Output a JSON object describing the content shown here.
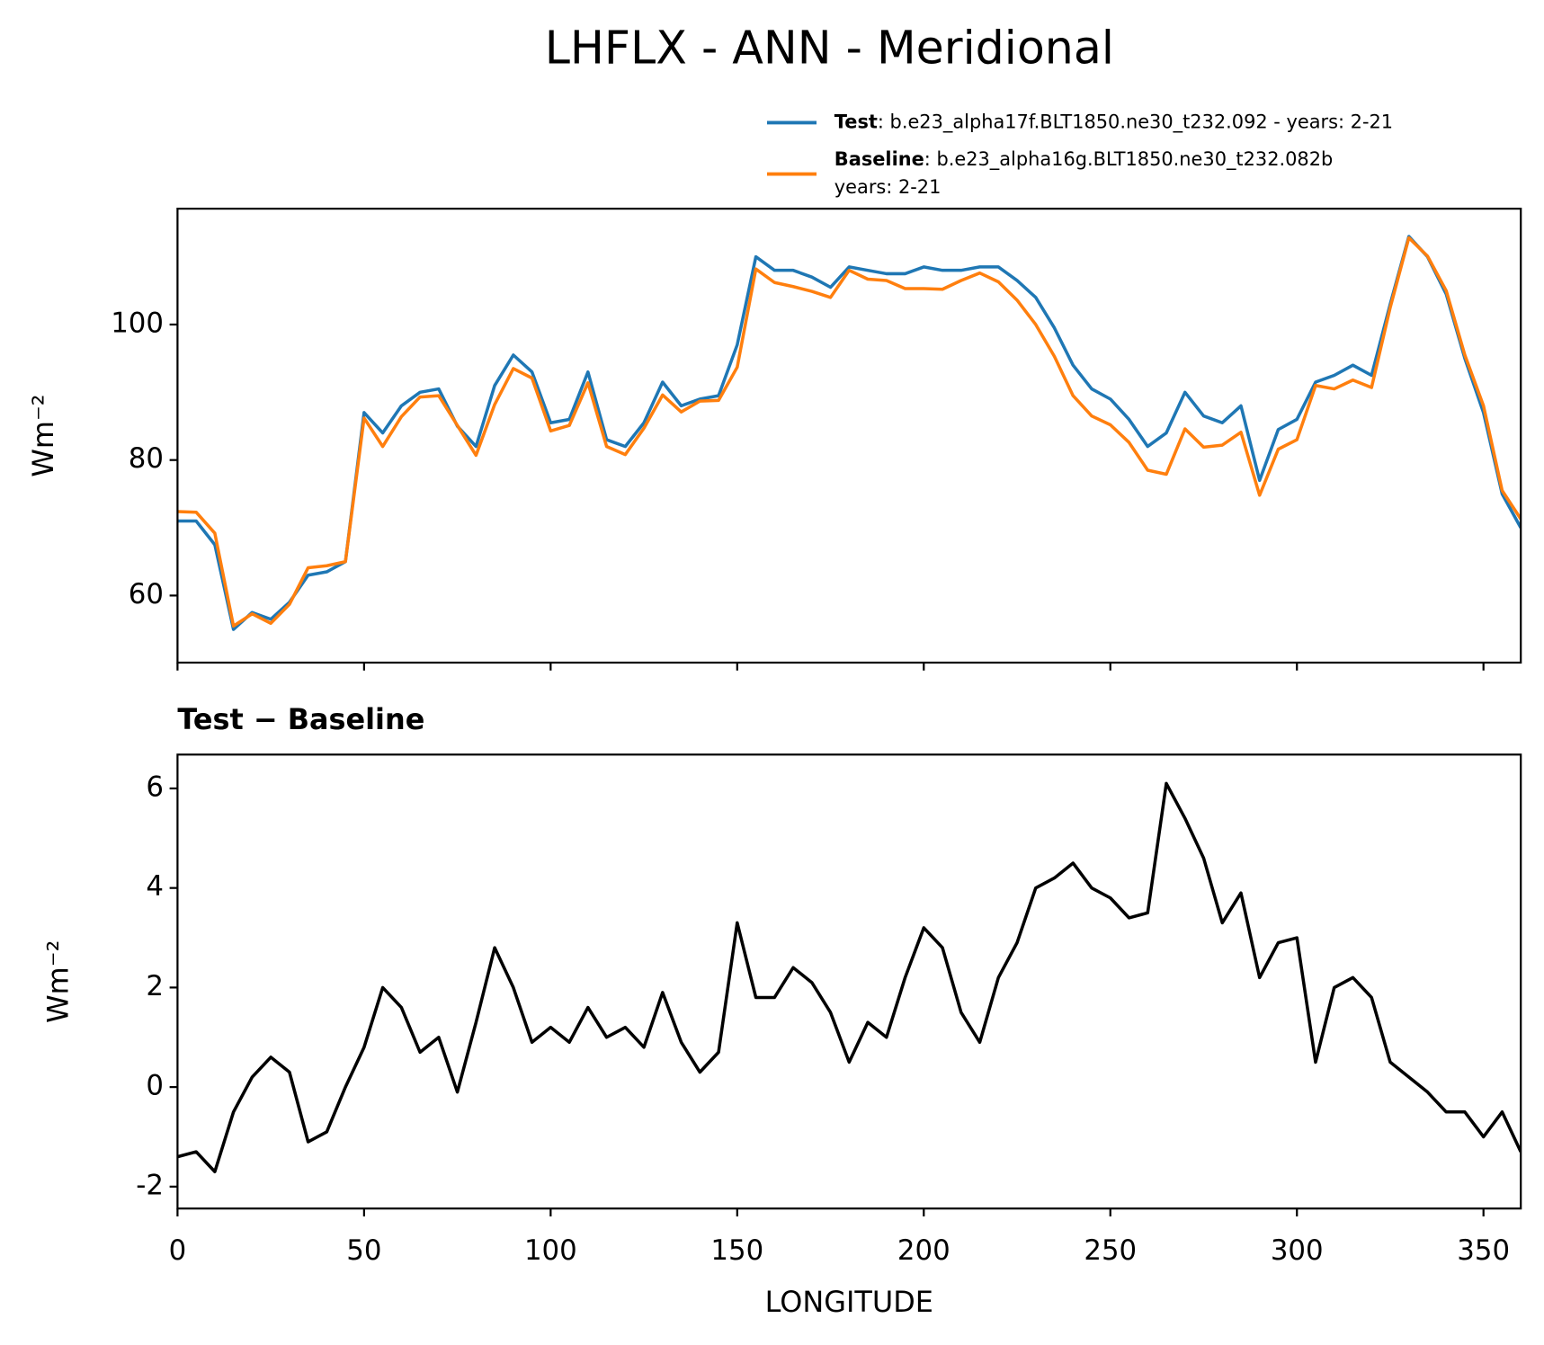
{
  "title": "LHFLX - ANN - Meridional",
  "chart_data": [
    {
      "type": "line",
      "x": [
        0,
        5,
        10,
        15,
        20,
        25,
        30,
        35,
        40,
        45,
        50,
        55,
        60,
        65,
        70,
        75,
        80,
        85,
        90,
        95,
        100,
        105,
        110,
        115,
        120,
        125,
        130,
        135,
        140,
        145,
        150,
        155,
        160,
        165,
        170,
        175,
        180,
        185,
        190,
        195,
        200,
        205,
        210,
        215,
        220,
        225,
        230,
        235,
        240,
        245,
        250,
        255,
        260,
        265,
        270,
        275,
        280,
        285,
        290,
        295,
        300,
        305,
        310,
        315,
        320,
        325,
        330,
        335,
        340,
        345,
        350,
        355,
        360
      ],
      "series": [
        {
          "name": "Test",
          "label": ": b.e23_alpha17f.BLT1850.ne30_t232.092 - years: 2-21",
          "color": "#1f77b4",
          "values": [
            71,
            71,
            67.5,
            55,
            57.5,
            56.5,
            59,
            63,
            63.5,
            65,
            87,
            84,
            88,
            90,
            90.5,
            85,
            82,
            91,
            95.5,
            93,
            85.5,
            86,
            93,
            83,
            82,
            85.5,
            91.5,
            88,
            89,
            89.5,
            97,
            110,
            108,
            108,
            107,
            105.5,
            108.5,
            108,
            107.5,
            107.5,
            108.5,
            108,
            108,
            108.5,
            108.5,
            106.5,
            104,
            99.5,
            94,
            90.5,
            89,
            86,
            82,
            84,
            90,
            86.5,
            85.5,
            88,
            77,
            84.5,
            86,
            91.5,
            92.5,
            94,
            92.5,
            103,
            113,
            110,
            104.5,
            95,
            87,
            75,
            70
          ]
        },
        {
          "name": "Baseline",
          "label": [
            ": b.e23_alpha16g.BLT1850.ne30_t232.082b",
            "years: 2-21"
          ],
          "color": "#ff7f0e",
          "values": [
            72.4,
            72.3,
            69.2,
            55.5,
            57.3,
            55.9,
            58.7,
            64.1,
            64.4,
            65,
            86.2,
            82,
            86.4,
            89.3,
            89.5,
            85.1,
            80.7,
            88.2,
            93.5,
            92.1,
            84.3,
            85.1,
            91.4,
            82,
            80.8,
            84.7,
            89.6,
            87.1,
            88.7,
            88.8,
            93.7,
            108.2,
            106.2,
            105.6,
            104.9,
            104,
            108,
            106.7,
            106.5,
            105.3,
            105.3,
            105.2,
            106.5,
            107.6,
            106.3,
            103.6,
            100,
            95.3,
            89.5,
            86.5,
            85.2,
            82.6,
            78.5,
            77.9,
            84.6,
            81.9,
            82.2,
            84.1,
            74.8,
            81.6,
            83,
            91,
            90.5,
            91.8,
            90.7,
            102.5,
            112.8,
            110.1,
            105,
            95.5,
            88,
            75.5,
            71.3
          ]
        }
      ],
      "ylabel": "Wm⁻²",
      "xlim": [
        0,
        360
      ],
      "xticks": [
        0,
        50,
        100,
        150,
        200,
        250,
        300,
        350
      ],
      "show_xtick_labels": false,
      "ylim": [
        50.1,
        117.1
      ],
      "yticks": [
        60,
        80,
        100
      ],
      "grid": false
    },
    {
      "type": "line",
      "title": "Test − Baseline",
      "x": [
        0,
        5,
        10,
        15,
        20,
        25,
        30,
        35,
        40,
        45,
        50,
        55,
        60,
        65,
        70,
        75,
        80,
        85,
        90,
        95,
        100,
        105,
        110,
        115,
        120,
        125,
        130,
        135,
        140,
        145,
        150,
        155,
        160,
        165,
        170,
        175,
        180,
        185,
        190,
        195,
        200,
        205,
        210,
        215,
        220,
        225,
        230,
        235,
        240,
        245,
        250,
        255,
        260,
        265,
        270,
        275,
        280,
        285,
        290,
        295,
        300,
        305,
        310,
        315,
        320,
        325,
        330,
        335,
        340,
        345,
        350,
        355,
        360
      ],
      "values": [
        -1.4,
        -1.3,
        -1.7,
        -0.5,
        0.2,
        0.6,
        0.3,
        -1.1,
        -0.9,
        0,
        0.8,
        2.0,
        1.6,
        0.7,
        1.0,
        -0.1,
        1.3,
        2.8,
        2.0,
        0.9,
        1.2,
        0.9,
        1.6,
        1.0,
        1.2,
        0.8,
        1.9,
        0.9,
        0.3,
        0.7,
        3.3,
        1.8,
        1.8,
        2.4,
        2.1,
        1.5,
        0.5,
        1.3,
        1.0,
        2.2,
        3.2,
        2.8,
        1.5,
        0.9,
        2.2,
        2.9,
        4.0,
        4.2,
        4.5,
        4.0,
        3.8,
        3.4,
        3.5,
        6.1,
        5.4,
        4.6,
        3.3,
        3.9,
        2.2,
        2.9,
        3.0,
        0.5,
        2.0,
        2.2,
        1.8,
        0.5,
        0.2,
        -0.1,
        -0.5,
        -0.5,
        -1.0,
        -0.5,
        -1.3
      ],
      "color": "#000000",
      "ylabel": "Wm⁻²",
      "xlabel": "LONGITUDE",
      "xlim": [
        0,
        360
      ],
      "xticks": [
        0,
        50,
        100,
        150,
        200,
        250,
        300,
        350
      ],
      "show_xtick_labels": true,
      "ylim": [
        -2.44,
        6.68
      ],
      "yticks": [
        -2,
        0,
        2,
        4,
        6
      ],
      "grid": false
    }
  ]
}
